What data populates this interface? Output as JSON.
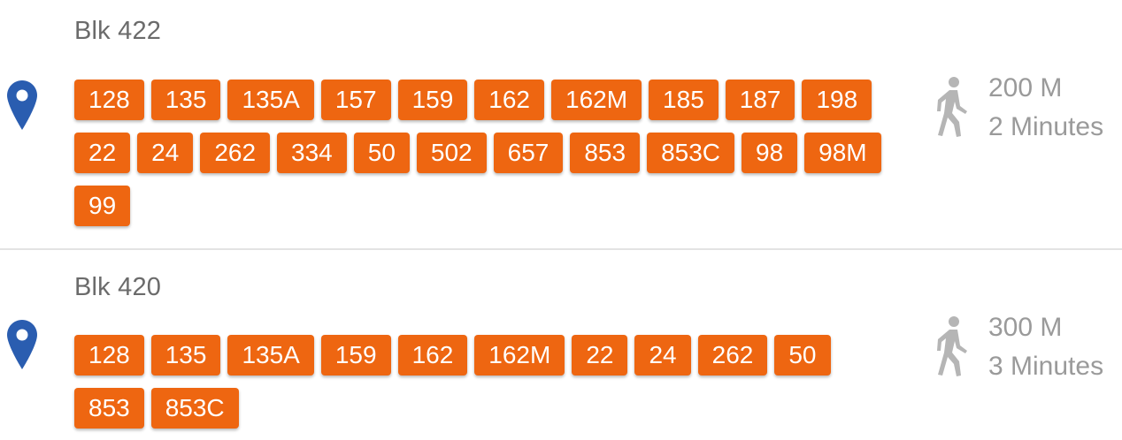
{
  "stops": [
    {
      "name": "Blk 422",
      "services": [
        "128",
        "135",
        "135A",
        "157",
        "159",
        "162",
        "162M",
        "185",
        "187",
        "198",
        "22",
        "24",
        "262",
        "334",
        "50",
        "502",
        "657",
        "853",
        "853C",
        "98",
        "98M",
        "99"
      ],
      "distance": "200 M",
      "walk_time": "2 Minutes"
    },
    {
      "name": "Blk 420",
      "services": [
        "128",
        "135",
        "135A",
        "159",
        "162",
        "162M",
        "22",
        "24",
        "262",
        "50",
        "853",
        "853C"
      ],
      "distance": "300 M",
      "walk_time": "3 Minutes"
    }
  ],
  "colors": {
    "chip_bg": "#ee6611",
    "pin": "#2a5db0",
    "walk": "#b5b5b5",
    "muted_text": "#9a9a9a"
  },
  "icons": {
    "location": "map-pin-icon",
    "walk": "walking-person-icon"
  }
}
